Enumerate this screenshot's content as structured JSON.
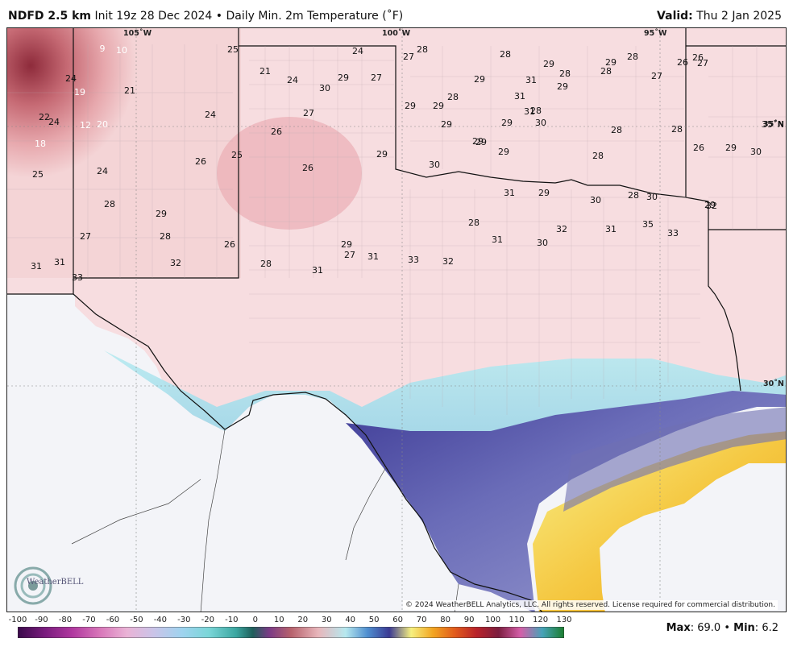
{
  "header": {
    "model": "NDFD 2.5 km",
    "init": "Init 19z 28 Dec 2024",
    "separator": "•",
    "product": "Daily Min. 2m Temperature (˚F)",
    "valid_label": "Valid:",
    "valid_value": "Thu 2 Jan 2025"
  },
  "map": {
    "coord_labels": [
      "105˚W",
      "100˚W",
      "95˚W",
      "35˚N",
      "30˚N"
    ],
    "copyright": "© 2024 WeatherBELL Analytics, LLC. All rights reserved. License required for commercial distribution.",
    "logo_text": "WeatherBELL",
    "region": "Texas and surrounding states",
    "temperature_labels": [
      [
        "9",
        "w"
      ],
      [
        "10",
        "w"
      ],
      [
        "25",
        "k"
      ],
      [
        "24",
        "k"
      ],
      [
        "27",
        "k"
      ],
      [
        "28",
        "k"
      ],
      [
        "28",
        "k"
      ],
      [
        "29",
        "k"
      ],
      [
        "28",
        "k"
      ],
      [
        "29",
        "k"
      ],
      [
        "28",
        "k"
      ],
      [
        "26",
        "k"
      ],
      [
        "27",
        "k"
      ],
      [
        "24",
        "k"
      ],
      [
        "19",
        "w"
      ],
      [
        "21",
        "k"
      ],
      [
        "21",
        "k"
      ],
      [
        "24",
        "k"
      ],
      [
        "30",
        "k"
      ],
      [
        "29",
        "k"
      ],
      [
        "27",
        "k"
      ],
      [
        "31",
        "k"
      ],
      [
        "28",
        "k"
      ],
      [
        "29",
        "k"
      ],
      [
        "29",
        "k"
      ],
      [
        "27",
        "k"
      ],
      [
        "26",
        "k"
      ],
      [
        "22",
        "k"
      ],
      [
        "24",
        "k"
      ],
      [
        "12",
        "w"
      ],
      [
        "20",
        "w"
      ],
      [
        "24",
        "k"
      ],
      [
        "27",
        "k"
      ],
      [
        "29",
        "k"
      ],
      [
        "28",
        "k"
      ],
      [
        "31",
        "k"
      ],
      [
        "29",
        "k"
      ],
      [
        "29",
        "k"
      ],
      [
        "29",
        "k"
      ],
      [
        "18",
        "w"
      ],
      [
        "26",
        "k"
      ],
      [
        "29",
        "k"
      ],
      [
        "28",
        "k"
      ],
      [
        "31",
        "k"
      ],
      [
        "30",
        "k"
      ],
      [
        "28",
        "k"
      ],
      [
        "28",
        "k"
      ],
      [
        "35˚N",
        "k"
      ],
      [
        "25",
        "k"
      ],
      [
        "24",
        "k"
      ],
      [
        "26",
        "k"
      ],
      [
        "25",
        "k"
      ],
      [
        "26",
        "k"
      ],
      [
        "29",
        "k"
      ],
      [
        "30",
        "k"
      ],
      [
        "29",
        "k"
      ],
      [
        "29",
        "k"
      ],
      [
        "28",
        "k"
      ],
      [
        "26",
        "k"
      ],
      [
        "29",
        "k"
      ],
      [
        "30",
        "k"
      ],
      [
        "28",
        "k"
      ],
      [
        "29",
        "k"
      ],
      [
        "27",
        "k"
      ],
      [
        "28",
        "k"
      ],
      [
        "26",
        "k"
      ],
      [
        "29",
        "k"
      ],
      [
        "28",
        "k"
      ],
      [
        "31",
        "k"
      ],
      [
        "29",
        "k"
      ],
      [
        "30",
        "k"
      ],
      [
        "28",
        "k"
      ],
      [
        "30",
        "k"
      ],
      [
        "29",
        "k"
      ],
      [
        "31",
        "k"
      ],
      [
        "31",
        "k"
      ],
      [
        "33",
        "k"
      ],
      [
        "32",
        "k"
      ],
      [
        "27",
        "k"
      ],
      [
        "28",
        "k"
      ],
      [
        "31",
        "k"
      ],
      [
        "31",
        "k"
      ],
      [
        "33",
        "k"
      ],
      [
        "32",
        "k"
      ],
      [
        "31",
        "k"
      ],
      [
        "30",
        "k"
      ],
      [
        "32",
        "k"
      ],
      [
        "31",
        "k"
      ],
      [
        "33",
        "k"
      ],
      [
        "35",
        "k"
      ],
      [
        "32",
        "k"
      ],
      [
        "31",
        "k"
      ],
      [
        "31",
        "k"
      ],
      [
        "31",
        "k"
      ],
      [
        "31",
        "k"
      ],
      [
        "31",
        "k"
      ]
    ]
  },
  "legend": {
    "ticks": [
      "-100",
      "-90",
      "-80",
      "-70",
      "-60",
      "-50",
      "-40",
      "-30",
      "-20",
      "-10",
      "0",
      "10",
      "20",
      "30",
      "40",
      "50",
      "60",
      "70",
      "80",
      "90",
      "100",
      "110",
      "120",
      "130"
    ],
    "max_label": "Max",
    "max_value": "69.0",
    "sep": "•",
    "min_label": "Min",
    "min_value": "6.2"
  }
}
